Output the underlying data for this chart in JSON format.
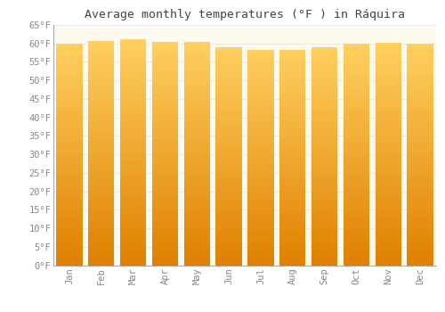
{
  "title": "Average monthly temperatures (°F ) in Ráquira",
  "months": [
    "Jan",
    "Feb",
    "Mar",
    "Apr",
    "May",
    "Jun",
    "Jul",
    "Aug",
    "Sep",
    "Oct",
    "Nov",
    "Dec"
  ],
  "values": [
    59.9,
    60.6,
    61.0,
    60.4,
    60.3,
    58.8,
    58.3,
    58.3,
    59.0,
    59.8,
    60.1,
    59.9
  ],
  "bar_color_top": "#FFD966",
  "bar_color_bottom": "#E08000",
  "bar_color_mid": "#FFA500",
  "background_color": "#FFFFFF",
  "plot_bg_color": "#FFFAF0",
  "grid_color": "#E8E8E8",
  "axis_color": "#AAAAAA",
  "tick_color": "#888888",
  "title_color": "#444444",
  "ylim": [
    0,
    65
  ],
  "ytick_step": 5,
  "title_fontsize": 9.5,
  "tick_fontsize": 7.5,
  "font_family": "monospace"
}
